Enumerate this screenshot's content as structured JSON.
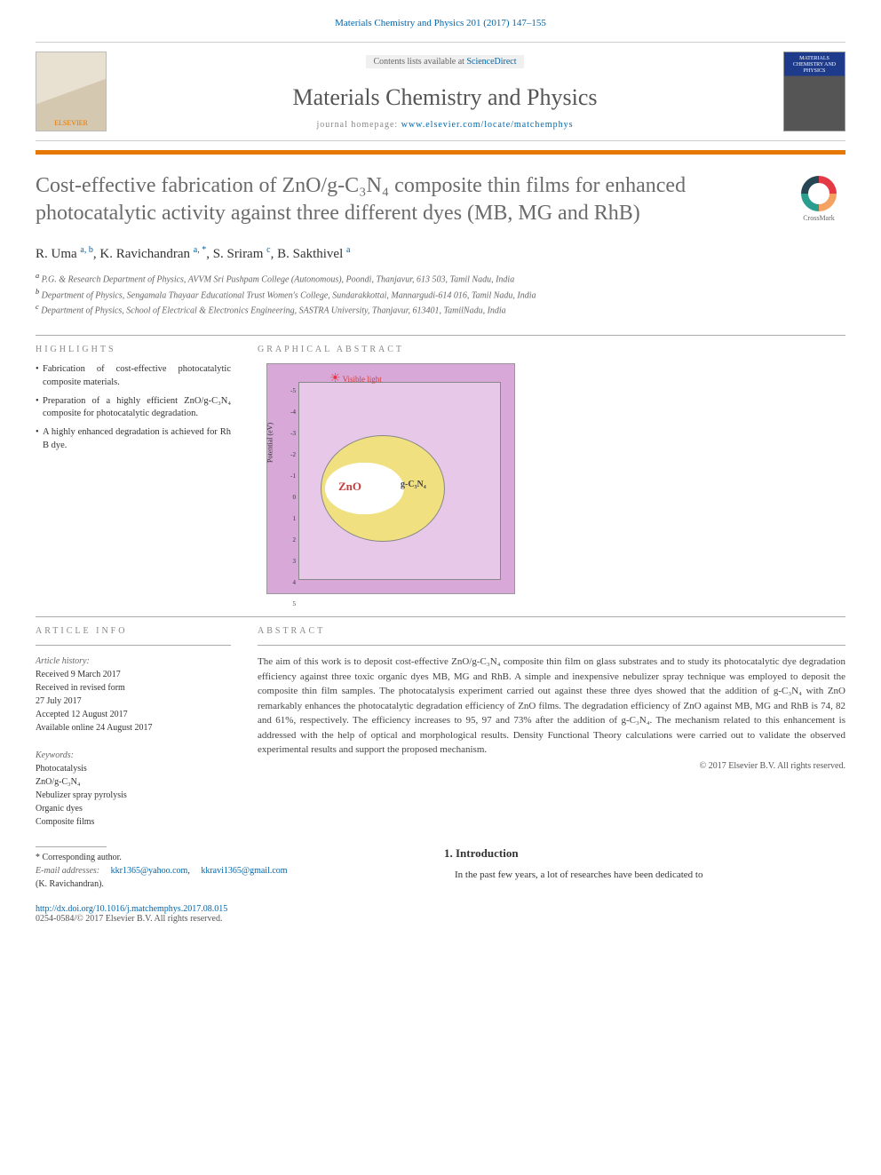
{
  "citation": "Materials Chemistry and Physics 201 (2017) 147–155",
  "header": {
    "contents_prefix": "Contents lists available at ",
    "contents_link": "ScienceDirect",
    "journal_name": "Materials Chemistry and Physics",
    "homepage_prefix": "journal homepage: ",
    "homepage_link": "www.elsevier.com/locate/matchemphys",
    "elsevier_label": "ELSEVIER",
    "cover_text": "MATERIALS CHEMISTRY AND PHYSICS"
  },
  "crossmark_label": "CrossMark",
  "title": "Cost-effective fabrication of ZnO/g-C₃N₄ composite thin films for enhanced photocatalytic activity against three different dyes (MB, MG and RhB)",
  "authors_html": "R. Uma <sup>a, b</sup>, K. Ravichandran <sup>a, *</sup>, S. Sriram <sup>c</sup>, B. Sakthivel <sup>a</sup>",
  "affiliations": [
    "a P.G. & Research Department of Physics, AVVM Sri Pushpam College (Autonomous), Poondi, Thanjavur, 613 503, Tamil Nadu, India",
    "b Department of Physics, Sengamala Thayaar Educational Trust Women's College, Sundarakkottai, Mannargudi-614 016, Tamil Nadu, India",
    "c Department of Physics, School of Electrical & Electronics Engineering, SASTRA University, Thanjavur, 613401, TamilNadu, India"
  ],
  "headings": {
    "highlights": "HIGHLIGHTS",
    "graphical": "GRAPHICAL ABSTRACT",
    "article_info": "ARTICLE INFO",
    "abstract": "ABSTRACT",
    "introduction": "1. Introduction"
  },
  "highlights": [
    "Fabrication of cost-effective photocatalytic composite materials.",
    "Preparation of a highly efficient ZnO/g-C₃N₄ composite for photocatalytic degradation.",
    "A highly enhanced degradation is achieved for Rh B dye."
  ],
  "graphical_abstract": {
    "yaxis_label": "Potential (eV)",
    "yticks": [
      "-5",
      "-4",
      "-3",
      "-2",
      "-1",
      "0",
      "1",
      "2",
      "3",
      "4",
      "5"
    ],
    "sun_label": "Visible light",
    "zno_label": "ZnO",
    "cn_label": "g-C₃N₄",
    "background_color": "#d8a8d8",
    "inner_color": "#e8c8e8"
  },
  "article_info": {
    "history_label": "Article history:",
    "history": [
      "Received 9 March 2017",
      "Received in revised form",
      "27 July 2017",
      "Accepted 12 August 2017",
      "Available online 24 August 2017"
    ],
    "keywords_label": "Keywords:",
    "keywords": [
      "Photocatalysis",
      "ZnO/g-C₃N₄",
      "Nebulizer spray pyrolysis",
      "Organic dyes",
      "Composite films"
    ]
  },
  "abstract": "The aim of this work is to deposit cost-effective ZnO/g-C₃N₄ composite thin film on glass substrates and to study its photocatalytic dye degradation efficiency against three toxic organic dyes MB, MG and RhB. A simple and inexpensive nebulizer spray technique was employed to deposit the composite thin film samples. The photocatalysis experiment carried out against these three dyes showed that the addition of g-C₃N₄ with ZnO remarkably enhances the photocatalytic degradation efficiency of ZnO films. The degradation efficiency of ZnO against MB, MG and RhB is 74, 82 and 61%, respectively. The efficiency increases to 95, 97 and 73% after the addition of g-C₃N₄. The mechanism related to this enhancement is addressed with the help of optical and morphological results. Density Functional Theory calculations were carried out to validate the observed experimental results and support the proposed mechanism.",
  "abstract_copyright": "© 2017 Elsevier B.V. All rights reserved.",
  "footer": {
    "corr_label": "* Corresponding author.",
    "email_label": "E-mail addresses:",
    "emails": [
      "kkr1365@yahoo.com",
      "kkravi1365@gmail.com"
    ],
    "corr_name": "(K. Ravichandran).",
    "doi": "http://dx.doi.org/10.1016/j.matchemphys.2017.08.015",
    "issn_copyright": "0254-0584/© 2017 Elsevier B.V. All rights reserved."
  },
  "introduction_text": "In the past few years, a lot of researches have been dedicated to"
}
